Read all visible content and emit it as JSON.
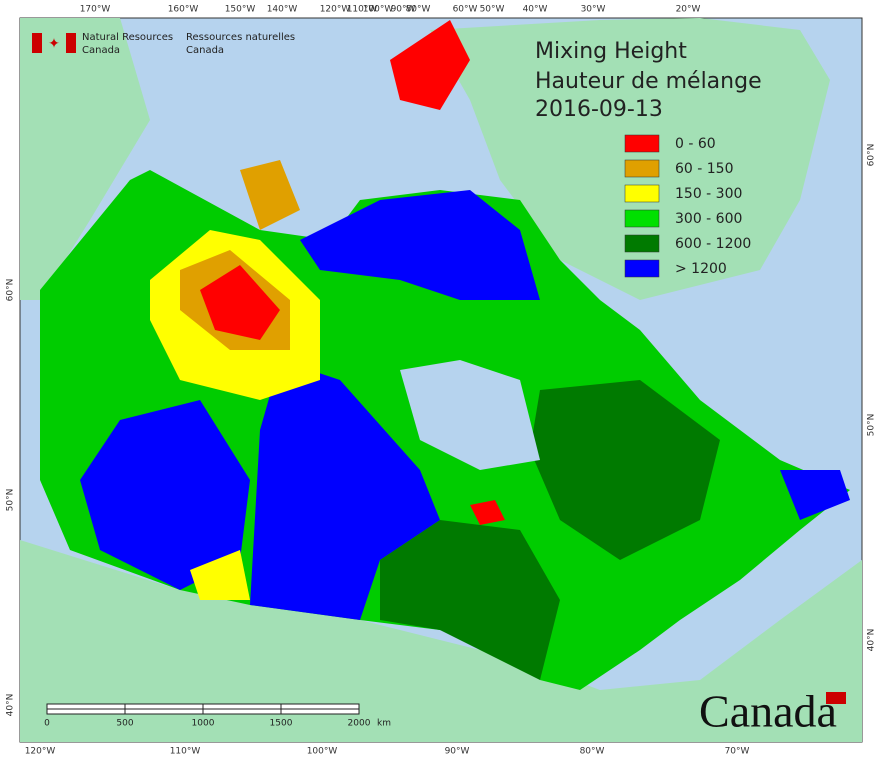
{
  "header": {
    "agency_en": [
      "Natural Resources",
      "Canada"
    ],
    "agency_fr": [
      "Ressources naturelles",
      "Canada"
    ]
  },
  "title": [
    "Mixing Height",
    "Hauteur de mélange",
    "2016-09-13"
  ],
  "legend": [
    {
      "label": "0 - 60",
      "color": "#ff0000"
    },
    {
      "label": "60 - 150",
      "color": "#e0a000"
    },
    {
      "label": "150 - 300",
      "color": "#ffff00"
    },
    {
      "label": "300 - 600",
      "color": "#00e000"
    },
    {
      "label": "600 - 1200",
      "color": "#007a00"
    },
    {
      "label": "> 1200",
      "color": "#0000ff"
    }
  ],
  "graticule": {
    "top": [
      "170°W",
      "160°W",
      "150°W",
      "140°W",
      "120°W",
      "110°W",
      "100°W",
      "90°W",
      "80°W",
      "60°W",
      "50°W",
      "40°W",
      "30°W",
      "20°W"
    ],
    "bottom": [
      "120°W",
      "110°W",
      "100°W",
      "90°W",
      "80°W",
      "70°W"
    ],
    "left": [
      "60°N",
      "50°N",
      "40°N"
    ],
    "right": [
      "60°N",
      "50°N",
      "40°N"
    ]
  },
  "scale_bar": {
    "labels": [
      "0",
      "500",
      "1000",
      "1500",
      "2000"
    ],
    "unit": "km"
  },
  "wordmark": "Canada"
}
